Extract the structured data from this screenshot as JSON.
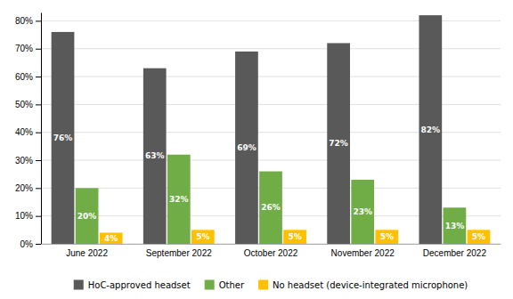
{
  "chart_data": {
    "type": "bar",
    "categories": [
      "June 2022",
      "September 2022",
      "October 2022",
      "November 2022",
      "December 2022"
    ],
    "series": [
      {
        "name": "HoC-approved headset",
        "color": "#595959",
        "values": [
          76,
          63,
          69,
          72,
          82
        ],
        "value_labels": [
          "76%",
          "63%",
          "69%",
          "72%",
          "82%"
        ]
      },
      {
        "name": "Other",
        "color": "#70ad47",
        "values": [
          20,
          32,
          26,
          23,
          13
        ],
        "value_labels": [
          "20%",
          "32%",
          "26%",
          "23%",
          "13%"
        ]
      },
      {
        "name": "No headset (device-integrated microphone)",
        "color": "#ffc000",
        "values": [
          4,
          5,
          5,
          5,
          5
        ],
        "value_labels": [
          "4%",
          "5%",
          "5%",
          "5%",
          "5%"
        ]
      }
    ],
    "ylim": [
      0,
      83
    ],
    "yticks": [
      {
        "value": 0,
        "label": "0%"
      },
      {
        "value": 10,
        "label": "10%"
      },
      {
        "value": 20,
        "label": "20%"
      },
      {
        "value": 30,
        "label": "30%"
      },
      {
        "value": 40,
        "label": "40%"
      },
      {
        "value": 50,
        "label": "50%"
      },
      {
        "value": 60,
        "label": "60%"
      },
      {
        "value": 70,
        "label": "70%"
      },
      {
        "value": 80,
        "label": "80%"
      }
    ],
    "grid": true,
    "legend": "bottom",
    "data_labels": true
  }
}
